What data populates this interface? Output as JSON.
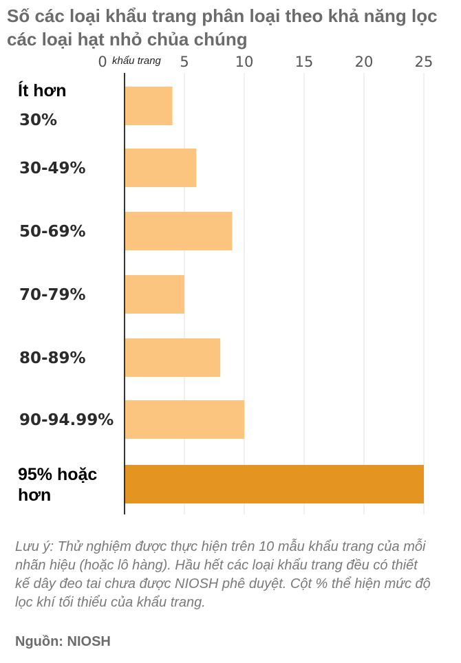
{
  "chart_data": {
    "type": "bar",
    "orientation": "horizontal",
    "title": "Số các loại khẩu trang phân loại theo khả năng lọc các loại hạt nhỏ chủa chúng",
    "xaxis_unit": "khẩu trang",
    "xticks": [
      0,
      5,
      10,
      15,
      20,
      25
    ],
    "xlim": [
      0,
      25
    ],
    "grid": true,
    "categories": [
      [
        "Ít hơn",
        "30%"
      ],
      [
        "30-49%"
      ],
      [
        "50-69%"
      ],
      [
        "70-79%"
      ],
      [
        "80-89%"
      ],
      [
        "90-94.99%"
      ],
      [
        "95% hoặc",
        "hơn"
      ]
    ],
    "values": [
      4,
      6,
      9,
      5,
      8,
      10,
      25
    ],
    "highlight_index": [
      0,
      6
    ],
    "colors": {
      "bar": "#fbc57f",
      "bar_highlight": "#e49420",
      "axis": "#333333",
      "grid": "#e2e2e2"
    }
  },
  "note": "Lưu ý: Thử nghiệm được thực hiện trên 10 mẫu khẩu trang của mỗi nhãn hiệu (hoặc lô hàng). Hầu hết các loại khẩu trang đều có thiết kế dây đeo tai chưa được NIOSH phê duyệt. Cột % thể hiện mức độ lọc khí tối thiểu của khẩu trang.",
  "source": "Nguồn: NIOSH"
}
